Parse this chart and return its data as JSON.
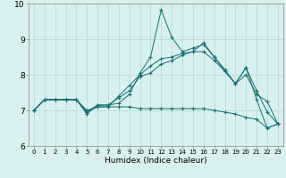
{
  "title": "",
  "xlabel": "Humidex (Indice chaleur)",
  "x": [
    0,
    1,
    2,
    3,
    4,
    5,
    6,
    7,
    8,
    9,
    10,
    11,
    12,
    13,
    14,
    15,
    16,
    17,
    18,
    19,
    20,
    21,
    22,
    23
  ],
  "line1": [
    7.0,
    7.3,
    7.3,
    7.3,
    7.3,
    6.9,
    7.15,
    7.15,
    7.2,
    7.45,
    8.05,
    8.5,
    9.82,
    9.05,
    8.65,
    8.75,
    8.85,
    8.5,
    8.15,
    7.75,
    8.2,
    7.3,
    6.5,
    6.62
  ],
  "line2": [
    7.0,
    7.3,
    7.3,
    7.3,
    7.3,
    6.95,
    7.15,
    7.15,
    7.35,
    7.55,
    7.95,
    8.05,
    8.3,
    8.4,
    8.55,
    8.65,
    8.9,
    8.5,
    8.1,
    7.75,
    8.2,
    7.55,
    6.95,
    6.62
  ],
  "line3": [
    7.0,
    7.3,
    7.3,
    7.3,
    7.3,
    6.95,
    7.1,
    7.1,
    7.4,
    7.7,
    8.0,
    8.25,
    8.45,
    8.5,
    8.6,
    8.65,
    8.65,
    8.4,
    8.1,
    7.75,
    8.0,
    7.45,
    7.25,
    6.62
  ],
  "line4": [
    7.0,
    7.3,
    7.3,
    7.3,
    7.3,
    7.0,
    7.1,
    7.1,
    7.1,
    7.1,
    7.05,
    7.05,
    7.05,
    7.05,
    7.05,
    7.05,
    7.05,
    7.0,
    6.95,
    6.9,
    6.8,
    6.75,
    6.5,
    6.62
  ],
  "line_color": "#1a7070",
  "bg_color": "#d8f0f0",
  "grid_color": "#b8dcdc",
  "ylim": [
    6,
    10
  ],
  "xlim": [
    -0.5,
    23.5
  ],
  "yticks": [
    6,
    7,
    8,
    9,
    10
  ],
  "xticks": [
    0,
    1,
    2,
    3,
    4,
    5,
    6,
    7,
    8,
    9,
    10,
    11,
    12,
    13,
    14,
    15,
    16,
    17,
    18,
    19,
    20,
    21,
    22,
    23
  ],
  "xlabel_fontsize": 6.5,
  "tick_fontsize_x": 5.0,
  "tick_fontsize_y": 6.5
}
